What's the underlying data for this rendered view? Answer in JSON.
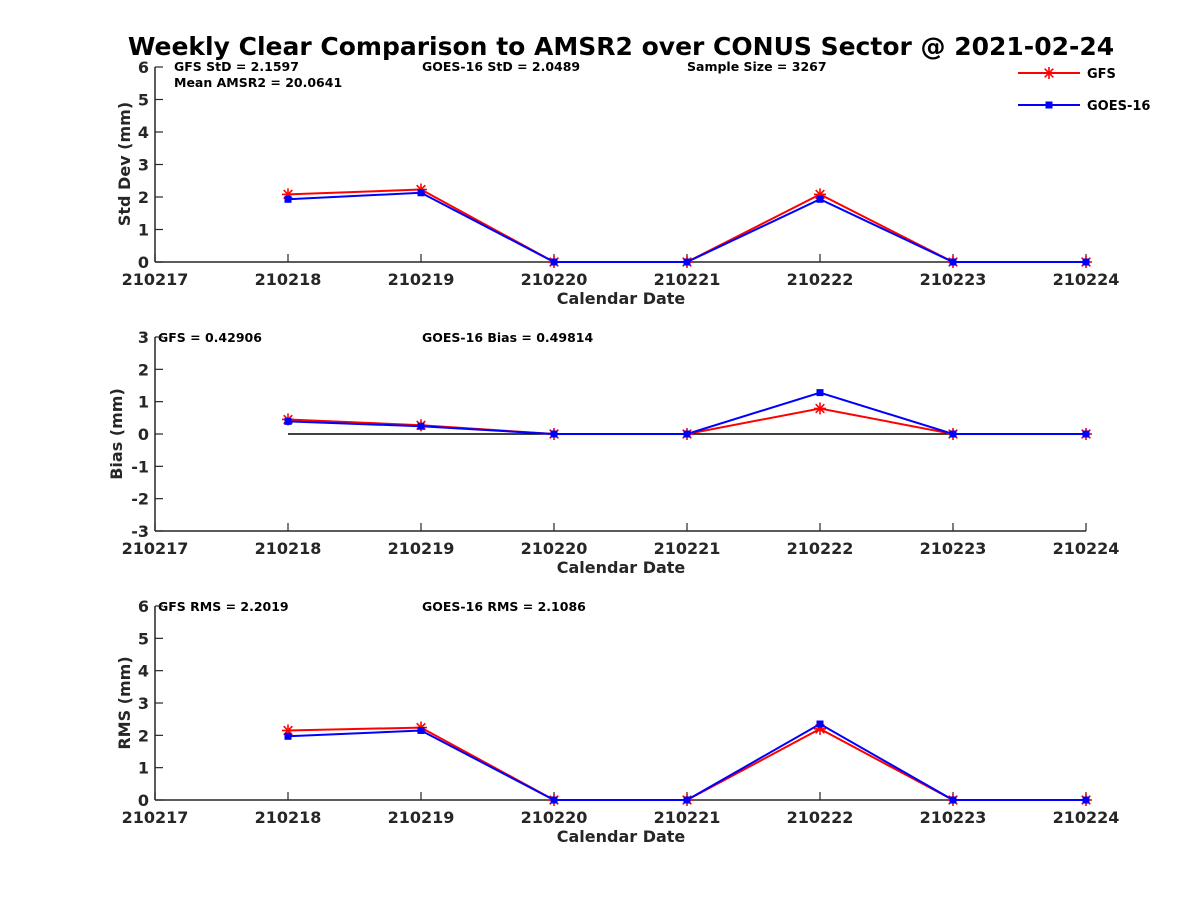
{
  "figure": {
    "title": "Weekly Clear Comparison to AMSR2 over CONUS Sector @ 2021-02-24"
  },
  "legend": {
    "placement": "top-right",
    "entries": [
      {
        "label": "GFS",
        "color": "#ff0000",
        "marker": "star"
      },
      {
        "label": "GOES-16",
        "color": "#0000ff",
        "marker": "square"
      }
    ]
  },
  "chart_data": [
    {
      "type": "line",
      "ylabel": "Std Dev (mm)",
      "xlabel": "Calendar Date",
      "categories": [
        "210217",
        "210218",
        "210219",
        "210220",
        "210221",
        "210222",
        "210223",
        "210224"
      ],
      "ylim": [
        0,
        6
      ],
      "yticks": [
        "0",
        "1",
        "2",
        "3",
        "4",
        "5",
        "6"
      ],
      "annotations": [
        "GFS StD = 2.1597",
        "GOES-16 StD = 2.0489",
        "Sample Size = 3267",
        "Mean AMSR2 = 20.0641"
      ],
      "series": [
        {
          "name": "GFS",
          "color": "#ff0000",
          "marker": "star",
          "x": [
            "210218",
            "210219",
            "210220",
            "210221",
            "210222",
            "210223",
            "210224"
          ],
          "values": [
            2.08,
            2.23,
            0,
            0,
            2.08,
            0,
            0
          ]
        },
        {
          "name": "GOES-16",
          "color": "#0000ff",
          "marker": "square",
          "x": [
            "210218",
            "210219",
            "210220",
            "210221",
            "210222",
            "210223",
            "210224"
          ],
          "values": [
            1.93,
            2.13,
            0,
            0,
            1.93,
            0,
            0
          ]
        }
      ]
    },
    {
      "type": "line",
      "ylabel": "Bias (mm)",
      "xlabel": "Calendar Date",
      "categories": [
        "210217",
        "210218",
        "210219",
        "210220",
        "210221",
        "210222",
        "210223",
        "210224"
      ],
      "ylim": [
        -3,
        3
      ],
      "yticks": [
        "-3",
        "-2",
        "-1",
        "0",
        "1",
        "2",
        "3"
      ],
      "zero_line": true,
      "annotations": [
        "GFS = 0.42906",
        "GOES-16 Bias  = 0.49814"
      ],
      "series": [
        {
          "name": "GFS",
          "color": "#ff0000",
          "marker": "star",
          "x": [
            "210218",
            "210219",
            "210220",
            "210221",
            "210222",
            "210223",
            "210224"
          ],
          "values": [
            0.45,
            0.27,
            0,
            0,
            0.79,
            0,
            0
          ]
        },
        {
          "name": "GOES-16",
          "color": "#0000ff",
          "marker": "square",
          "x": [
            "210218",
            "210219",
            "210220",
            "210221",
            "210222",
            "210223",
            "210224"
          ],
          "values": [
            0.39,
            0.24,
            0,
            0,
            1.28,
            0,
            0
          ]
        }
      ]
    },
    {
      "type": "line",
      "ylabel": "RMS (mm)",
      "xlabel": "Calendar Date",
      "categories": [
        "210217",
        "210218",
        "210219",
        "210220",
        "210221",
        "210222",
        "210223",
        "210224"
      ],
      "ylim": [
        0,
        6
      ],
      "yticks": [
        "0",
        "1",
        "2",
        "3",
        "4",
        "5",
        "6"
      ],
      "annotations": [
        "GFS RMS = 2.2019",
        "GOES-16 RMS = 2.1086"
      ],
      "series": [
        {
          "name": "GFS",
          "color": "#ff0000",
          "marker": "star",
          "x": [
            "210218",
            "210219",
            "210220",
            "210221",
            "210222",
            "210223",
            "210224"
          ],
          "values": [
            2.15,
            2.24,
            0,
            0,
            2.2,
            0,
            0
          ]
        },
        {
          "name": "GOES-16",
          "color": "#0000ff",
          "marker": "square",
          "x": [
            "210218",
            "210219",
            "210220",
            "210221",
            "210222",
            "210223",
            "210224"
          ],
          "values": [
            1.97,
            2.15,
            0,
            0,
            2.35,
            0,
            0
          ]
        }
      ]
    }
  ]
}
